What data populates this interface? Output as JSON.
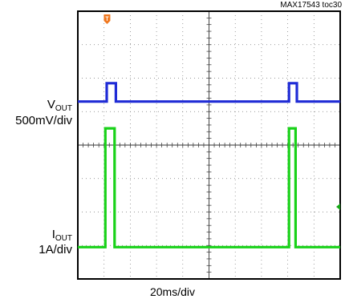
{
  "figure_id": "MAX17543 toc30",
  "channels": {
    "vout": {
      "label_main": "V",
      "label_sub": "OUT",
      "scale": "500mV/div",
      "color": "#1f2bd6"
    },
    "iout": {
      "label_main": "I",
      "label_sub": "OUT",
      "scale": "1A/div",
      "color": "#19d219"
    }
  },
  "time_scale": "20ms/div",
  "trigger_marker": {
    "name": "trigger-marker-icon",
    "color": "#f07820"
  },
  "level_marker": {
    "name": "level-marker-icon",
    "color": "#15a615"
  },
  "chart_data": {
    "type": "line",
    "grid": true,
    "x_divisions": 10,
    "y_divisions": 8,
    "xlabel": "20ms/div",
    "x_unit_per_div": "20ms",
    "series": [
      {
        "name": "VOUT",
        "scale": "500mV/div",
        "baseline_div": 5.3,
        "pulse_div": 5.85,
        "pulses": [
          {
            "start_div": 1.1,
            "end_div": 1.45
          },
          {
            "start_div": 8.05,
            "end_div": 8.35
          }
        ]
      },
      {
        "name": "IOUT",
        "scale": "1A/div",
        "baseline_div": 0.95,
        "pulse_div": 4.5,
        "pulses": [
          {
            "start_div": 1.05,
            "end_div": 1.4
          },
          {
            "start_div": 8.05,
            "end_div": 8.3
          }
        ]
      }
    ]
  }
}
